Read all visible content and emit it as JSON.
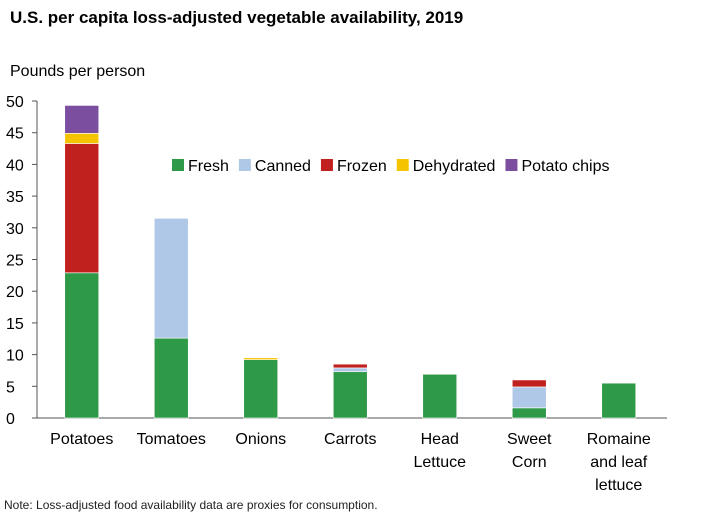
{
  "chart_data": {
    "type": "bar",
    "stacked": true,
    "title": "U.S. per capita loss-adjusted vegetable availability, 2019",
    "ylabel": "Pounds per person",
    "xlabel": "",
    "ylim": [
      0,
      50
    ],
    "yticks": [
      0,
      5,
      10,
      15,
      20,
      25,
      30,
      35,
      40,
      45,
      50
    ],
    "grid": false,
    "legend_position": "top-right",
    "categories": [
      [
        "Potatoes"
      ],
      [
        "Tomatoes"
      ],
      [
        "Onions"
      ],
      [
        "Carrots"
      ],
      [
        "Head",
        "Lettuce"
      ],
      [
        "Sweet",
        "Corn"
      ],
      [
        "Romaine",
        "and leaf",
        "lettuce"
      ]
    ],
    "series": [
      {
        "name": "Fresh",
        "color": "#2e9a48",
        "values": [
          22.9,
          12.6,
          9.2,
          7.3,
          6.9,
          1.6,
          5.5
        ]
      },
      {
        "name": "Canned",
        "color": "#b0c8e8",
        "values": [
          0,
          18.9,
          0,
          0.6,
          0,
          3.3,
          0
        ]
      },
      {
        "name": "Frozen",
        "color": "#c0211e",
        "values": [
          20.4,
          0,
          0,
          0.6,
          0,
          1.1,
          0
        ]
      },
      {
        "name": "Dehydrated",
        "color": "#f5c400",
        "values": [
          1.6,
          0,
          0.3,
          0,
          0,
          0,
          0
        ]
      },
      {
        "name": "Potato chips",
        "color": "#7b4ea0",
        "values": [
          4.4,
          0,
          0,
          0,
          0,
          0,
          0
        ]
      }
    ]
  },
  "note": "Note: Loss-adjusted food availability data are proxies for consumption."
}
